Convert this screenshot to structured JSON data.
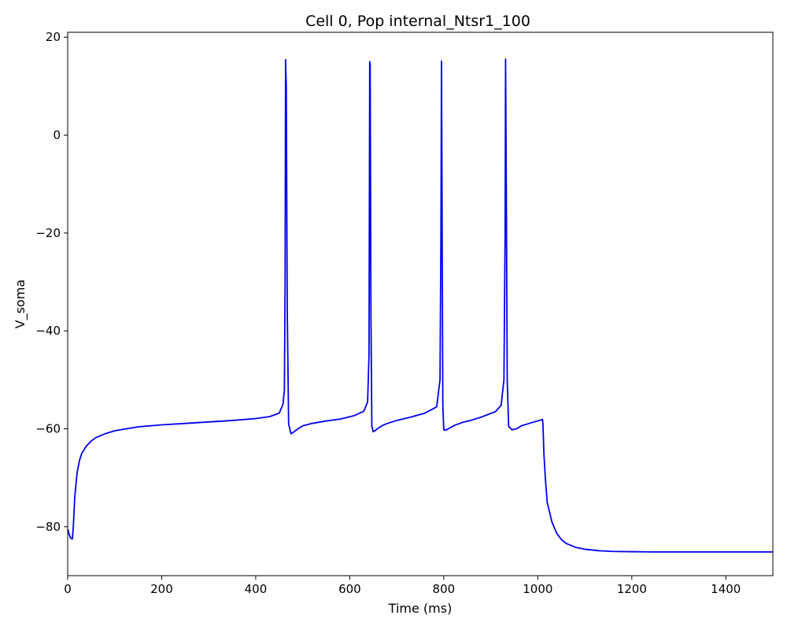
{
  "chart_data": {
    "type": "line",
    "title": "Cell 0, Pop internal_Ntsr1_100",
    "xlabel": "Time (ms)",
    "ylabel": "V_soma",
    "xlim": [
      0,
      1500
    ],
    "ylim": [
      -90,
      21
    ],
    "xticks": [
      0,
      200,
      400,
      600,
      800,
      1000,
      1200,
      1400
    ],
    "yticks": [
      -80,
      -60,
      -40,
      -20,
      0,
      20
    ],
    "xtick_labels": [
      "0",
      "200",
      "400",
      "600",
      "800",
      "1000",
      "1200",
      "1400"
    ],
    "ytick_labels": [
      "−80",
      "−60",
      "−40",
      "−20",
      "0",
      "20"
    ],
    "grid": false,
    "series": [
      {
        "color": "#0000ee",
        "x": [
          0,
          3,
          6,
          10,
          12,
          15,
          20,
          25,
          30,
          40,
          50,
          60,
          80,
          100,
          150,
          200,
          250,
          300,
          350,
          400,
          430,
          450,
          458,
          461,
          462.5,
          463.5,
          465,
          467,
          470,
          475,
          480,
          490,
          500,
          520,
          550,
          580,
          610,
          630,
          638,
          641,
          642.5,
          643.5,
          645,
          647,
          650,
          655,
          660,
          670,
          680,
          700,
          730,
          760,
          785,
          792,
          794,
          795.2,
          796.2,
          798,
          800,
          803,
          808,
          815,
          825,
          840,
          860,
          880,
          910,
          922,
          928,
          930.5,
          931.5,
          933,
          935,
          938,
          945,
          955,
          965,
          985,
          1010,
          1011,
          1013,
          1016,
          1020,
          1030,
          1040,
          1050,
          1060,
          1080,
          1100,
          1130,
          1160,
          1200,
          1250,
          1300,
          1400,
          1500
        ],
        "y": [
          -80.5,
          -81.5,
          -82.3,
          -82.5,
          -80,
          -74,
          -69,
          -66.5,
          -65,
          -63.5,
          -62.5,
          -61.8,
          -61,
          -60.4,
          -59.6,
          -59.2,
          -58.9,
          -58.6,
          -58.3,
          -57.9,
          -57.5,
          -56.8,
          -55,
          -52,
          -30,
          15.4,
          10,
          -35,
          -59,
          -61,
          -60.7,
          -60,
          -59.4,
          -58.9,
          -58.4,
          -58,
          -57.3,
          -56.4,
          -54.5,
          -45,
          15,
          14.5,
          -35,
          -59.5,
          -60.6,
          -60.3,
          -59.9,
          -59.3,
          -58.9,
          -58.3,
          -57.6,
          -56.8,
          -55.5,
          -50,
          -20,
          15.1,
          -10,
          -55,
          -60.2,
          -60.3,
          -60.1,
          -59.7,
          -59.2,
          -58.7,
          -58.2,
          -57.6,
          -56.5,
          -55.2,
          -50,
          -20,
          15.5,
          -10,
          -50,
          -59.5,
          -60.2,
          -60,
          -59.4,
          -58.8,
          -58.1,
          -59,
          -65,
          -70,
          -75,
          -79,
          -81.3,
          -82.6,
          -83.4,
          -84.2,
          -84.6,
          -84.9,
          -85.05,
          -85.1,
          -85.15,
          -85.15,
          -85.15,
          -85.15
        ]
      }
    ]
  }
}
